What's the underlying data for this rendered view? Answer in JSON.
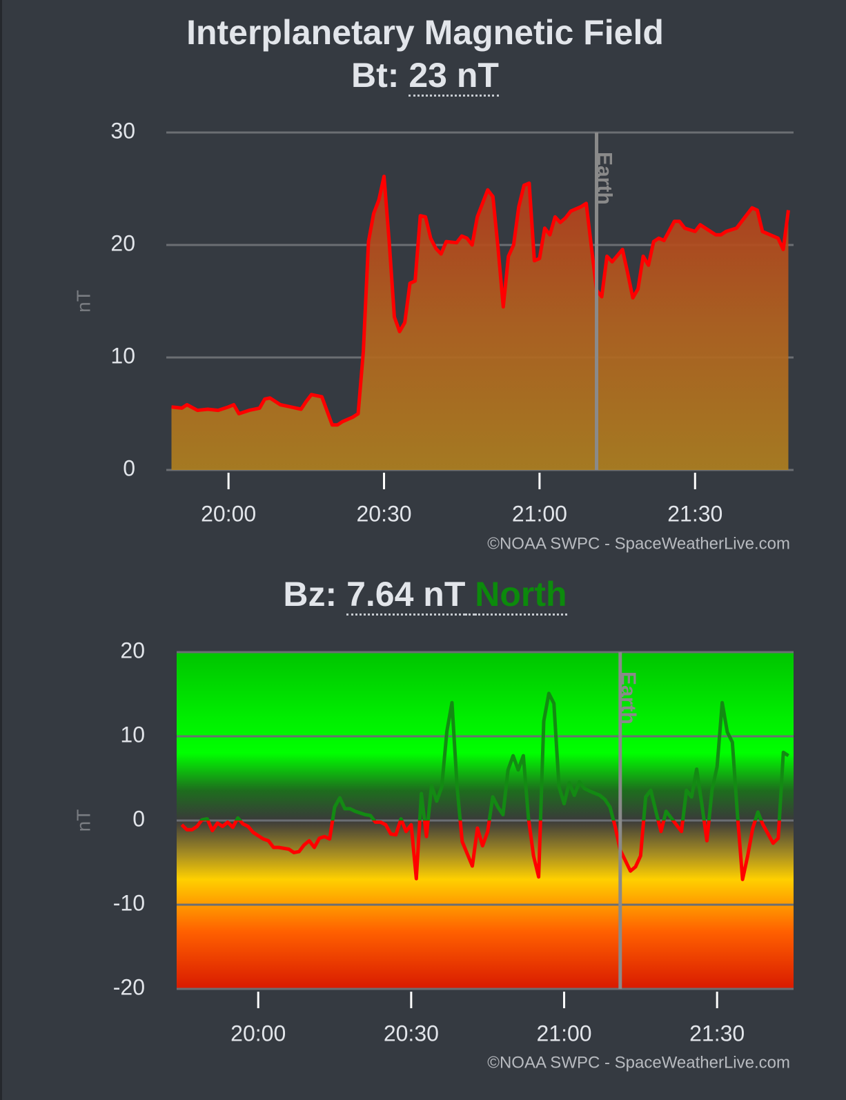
{
  "chart_data": [
    {
      "type": "area",
      "title": "Interplanetary Magnetic Field",
      "subtitle_label": "Bt:",
      "subtitle_value": "23 nT",
      "y_label": "nT",
      "source": "©NOAA SWPC - SpaceWeatherLive.com",
      "color": "#ff0000",
      "xlim": [
        "19:48",
        "21:49"
      ],
      "xticks": [
        "20:00",
        "20:30",
        "21:00",
        "21:30"
      ],
      "ylim": [
        0,
        30
      ],
      "yticks": [
        0,
        10,
        20,
        30
      ],
      "grid": true,
      "annotations": [
        {
          "x": "21:11",
          "label": "Earth"
        }
      ],
      "x": [
        "19:49",
        "19:51",
        "19:52",
        "19:54",
        "19:56",
        "19:58",
        "20:00",
        "20:01",
        "20:02",
        "20:04",
        "20:06",
        "20:07",
        "20:08",
        "20:10",
        "20:12",
        "20:14",
        "20:15",
        "20:16",
        "20:18",
        "20:20",
        "20:21",
        "20:22",
        "20:24",
        "20:25",
        "20:26",
        "20:27",
        "20:28",
        "20:29",
        "20:30",
        "20:31",
        "20:32",
        "20:33",
        "20:34",
        "20:35",
        "20:36",
        "20:37",
        "20:38",
        "20:39",
        "20:40",
        "20:41",
        "20:42",
        "20:44",
        "20:45",
        "20:46",
        "20:47",
        "20:48",
        "20:50",
        "20:51",
        "20:52",
        "20:53",
        "20:54",
        "20:55",
        "20:56",
        "20:57",
        "20:58",
        "20:59",
        "21:00",
        "21:01",
        "21:02",
        "21:03",
        "21:04",
        "21:05",
        "21:06",
        "21:08",
        "21:09",
        "21:11",
        "21:12",
        "21:13",
        "21:14",
        "21:16",
        "21:17",
        "21:18",
        "21:19",
        "21:20",
        "21:21",
        "21:22",
        "21:23",
        "21:24",
        "21:26",
        "21:27",
        "21:28",
        "21:30",
        "21:31",
        "21:32",
        "21:34",
        "21:35",
        "21:36",
        "21:38",
        "21:39",
        "21:41",
        "21:42",
        "21:43",
        "21:44",
        "21:46",
        "21:47",
        "21:48"
      ],
      "values": [
        5.6,
        5.5,
        5.8,
        5.3,
        5.4,
        5.3,
        5.6,
        5.8,
        5.0,
        5.3,
        5.5,
        6.3,
        6.4,
        5.8,
        5.6,
        5.4,
        6.1,
        6.7,
        6.5,
        4.0,
        4.0,
        4.3,
        4.7,
        5.0,
        10.5,
        20.3,
        22.8,
        24.0,
        26.1,
        20.3,
        13.6,
        12.3,
        13.1,
        16.6,
        16.8,
        22.6,
        22.5,
        20.6,
        19.7,
        19.2,
        20.3,
        20.2,
        20.8,
        20.6,
        20.0,
        22.5,
        24.9,
        24.3,
        19.7,
        14.5,
        19.0,
        20.0,
        23.4,
        25.3,
        25.5,
        18.6,
        18.8,
        21.5,
        20.9,
        22.5,
        22.0,
        22.4,
        23.0,
        23.4,
        23.7,
        16.0,
        15.4,
        19.0,
        18.5,
        19.6,
        17.5,
        15.3,
        16.1,
        19.0,
        18.2,
        20.3,
        20.6,
        20.4,
        22.1,
        22.1,
        21.5,
        21.2,
        21.8,
        21.5,
        20.9,
        20.9,
        21.2,
        21.5,
        22.1,
        23.3,
        23.1,
        21.2,
        21.0,
        20.6,
        19.6,
        23.1
      ]
    },
    {
      "type": "line",
      "title_label": "Bz:",
      "title_value": "7.64 nT",
      "title_status": "North",
      "y_label": "nT",
      "source": "©NOAA SWPC - SpaceWeatherLive.com",
      "color": "#138a13",
      "negative_color": "#ff0000",
      "xlim": [
        "19:44",
        "21:45"
      ],
      "xticks": [
        "20:00",
        "20:30",
        "21:00",
        "21:30"
      ],
      "ylim": [
        -20,
        20
      ],
      "yticks": [
        -20,
        -10,
        0,
        10,
        20
      ],
      "grid": true,
      "annotations": [
        {
          "x": "21:11",
          "label": "Earth"
        }
      ],
      "x": [
        "19:45",
        "19:46",
        "19:47",
        "19:48",
        "19:49",
        "19:50",
        "19:51",
        "19:52",
        "19:53",
        "19:54",
        "19:55",
        "19:56",
        "19:57",
        "19:58",
        "19:59",
        "20:01",
        "20:02",
        "20:03",
        "20:04",
        "20:06",
        "20:07",
        "20:08",
        "20:09",
        "20:10",
        "20:11",
        "20:12",
        "20:13",
        "20:14",
        "20:15",
        "20:16",
        "20:17",
        "20:18",
        "20:19",
        "20:21",
        "20:22",
        "20:23",
        "20:24",
        "20:25",
        "20:26",
        "20:27",
        "20:28",
        "20:29",
        "20:30",
        "20:31",
        "20:32",
        "20:33",
        "20:34",
        "20:35",
        "20:36",
        "20:37",
        "20:38",
        "20:39",
        "20:40",
        "20:42",
        "20:43",
        "20:44",
        "20:45",
        "20:46",
        "20:47",
        "20:48",
        "20:49",
        "20:50",
        "20:51",
        "20:52",
        "20:53",
        "20:54",
        "20:55",
        "20:56",
        "20:57",
        "20:58",
        "20:59",
        "21:00",
        "21:01",
        "21:02",
        "21:03",
        "21:04",
        "21:05",
        "21:07",
        "21:08",
        "21:09",
        "21:10",
        "21:11",
        "21:13",
        "21:14",
        "21:15",
        "21:16",
        "21:17",
        "21:18",
        "21:19",
        "21:20",
        "21:21",
        "21:22",
        "21:23",
        "21:24",
        "21:25",
        "21:26",
        "21:27",
        "21:28",
        "21:29",
        "21:30",
        "21:31",
        "21:32",
        "21:33",
        "21:34",
        "21:35",
        "21:36",
        "21:37",
        "21:38",
        "21:39",
        "21:40",
        "21:41",
        "21:42",
        "21:43",
        "21:44"
      ],
      "values": [
        -0.5,
        -1.1,
        -1.1,
        -0.7,
        0.1,
        0.2,
        -1.2,
        -0.3,
        -0.7,
        -0.2,
        -0.8,
        0.3,
        -0.4,
        -0.7,
        -1.4,
        -2.2,
        -2.4,
        -3.2,
        -3.2,
        -3.4,
        -3.8,
        -3.7,
        -2.9,
        -2.4,
        -3.2,
        -2.1,
        -1.9,
        -2.2,
        1.6,
        2.7,
        1.4,
        1.4,
        1.1,
        0.7,
        0.6,
        -0.2,
        -0.2,
        -0.5,
        -1.6,
        -1.7,
        0.2,
        -1.3,
        -0.5,
        -6.9,
        3.2,
        -1.9,
        4.2,
        2.3,
        4.0,
        10.6,
        14.0,
        4.0,
        -2.5,
        -5.4,
        -0.9,
        -3.0,
        -1.3,
        2.8,
        1.6,
        0.7,
        6.0,
        7.7,
        6.0,
        7.7,
        0.3,
        -4.2,
        -6.7,
        11.8,
        15.1,
        13.9,
        4.0,
        2.0,
        4.5,
        3.0,
        4.6,
        3.8,
        3.5,
        3.0,
        2.5,
        1.6,
        -0.7,
        -3.5,
        -6.0,
        -5.5,
        -4.2,
        2.8,
        3.6,
        1.1,
        -1.3,
        1.1,
        0.3,
        -0.5,
        -1.3,
        3.6,
        2.8,
        6.1,
        2.0,
        -2.4,
        3.6,
        6.4,
        14.0,
        10.5,
        9.3,
        0.7,
        -7.0,
        -4.2,
        -0.9,
        1.0,
        -0.5,
        -1.6,
        -2.7,
        -2.1,
        8.1,
        7.7
      ]
    }
  ]
}
